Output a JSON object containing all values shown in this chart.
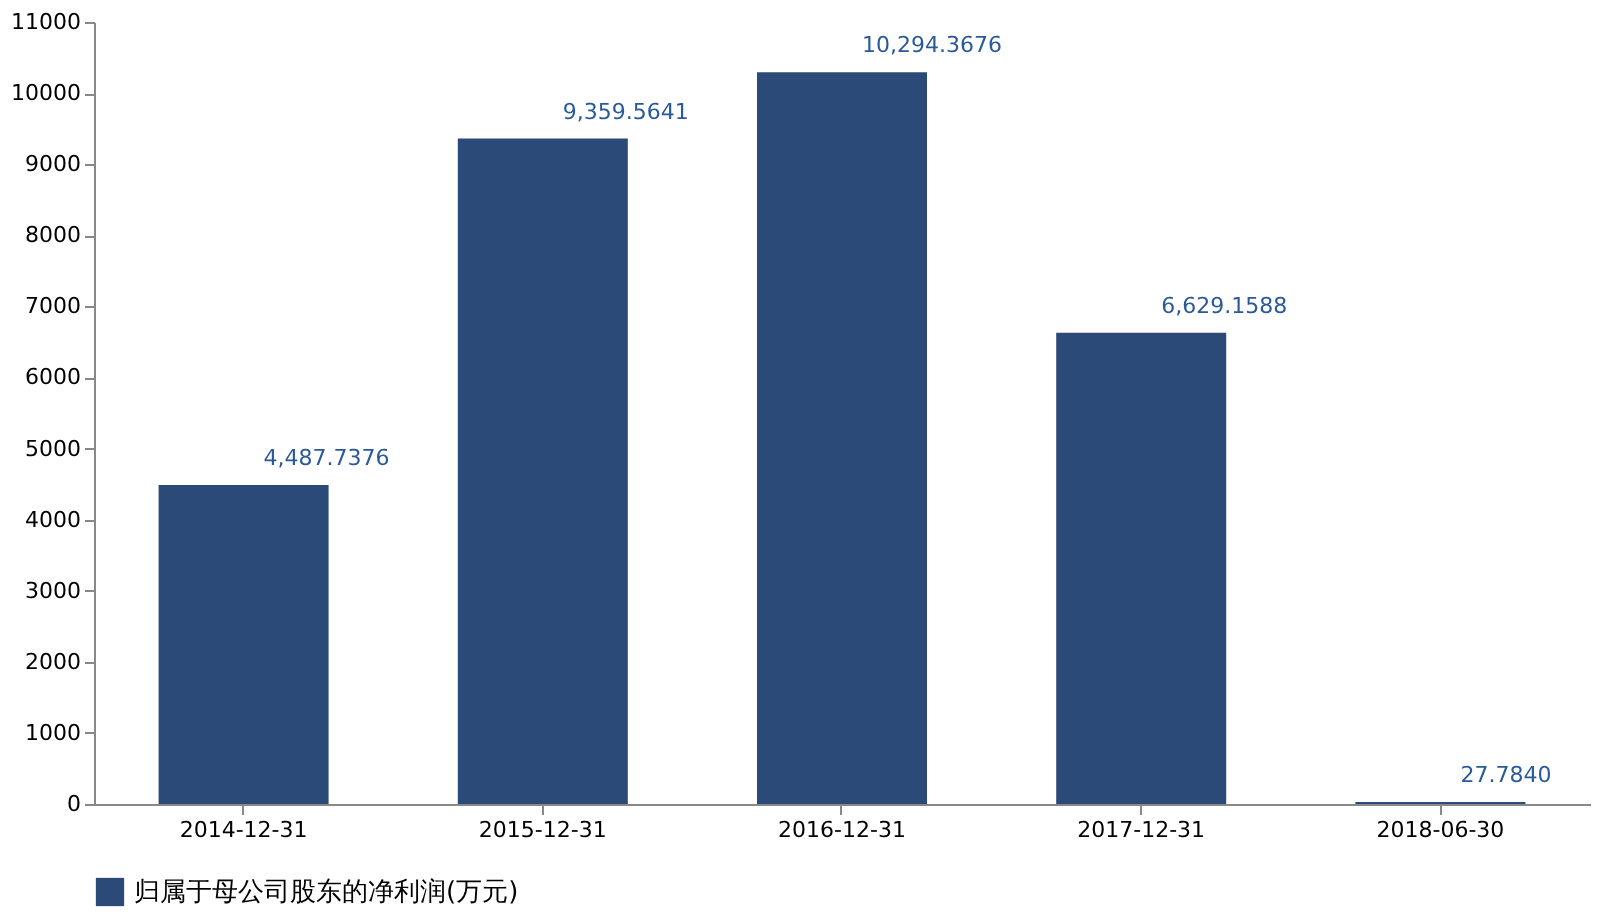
{
  "chart_data": {
    "type": "bar",
    "categories": [
      "2014-12-31",
      "2015-12-31",
      "2016-12-31",
      "2017-12-31",
      "2018-06-30"
    ],
    "series": [
      {
        "name": "归属于母公司股东的净利润(万元)",
        "color": "#2b4a78",
        "values": [
          4487.7376,
          9359.5641,
          10294.3676,
          6629.1588,
          27.784
        ],
        "value_labels": [
          "4,487.7376",
          "9,359.5641",
          "10,294.3676",
          "6,629.1588",
          "27.7840"
        ]
      }
    ],
    "ylim": [
      0,
      11000
    ],
    "yticks": [
      0,
      1000,
      2000,
      3000,
      4000,
      5000,
      6000,
      7000,
      8000,
      9000,
      10000,
      11000
    ],
    "grid": false,
    "legend": "bottom"
  }
}
